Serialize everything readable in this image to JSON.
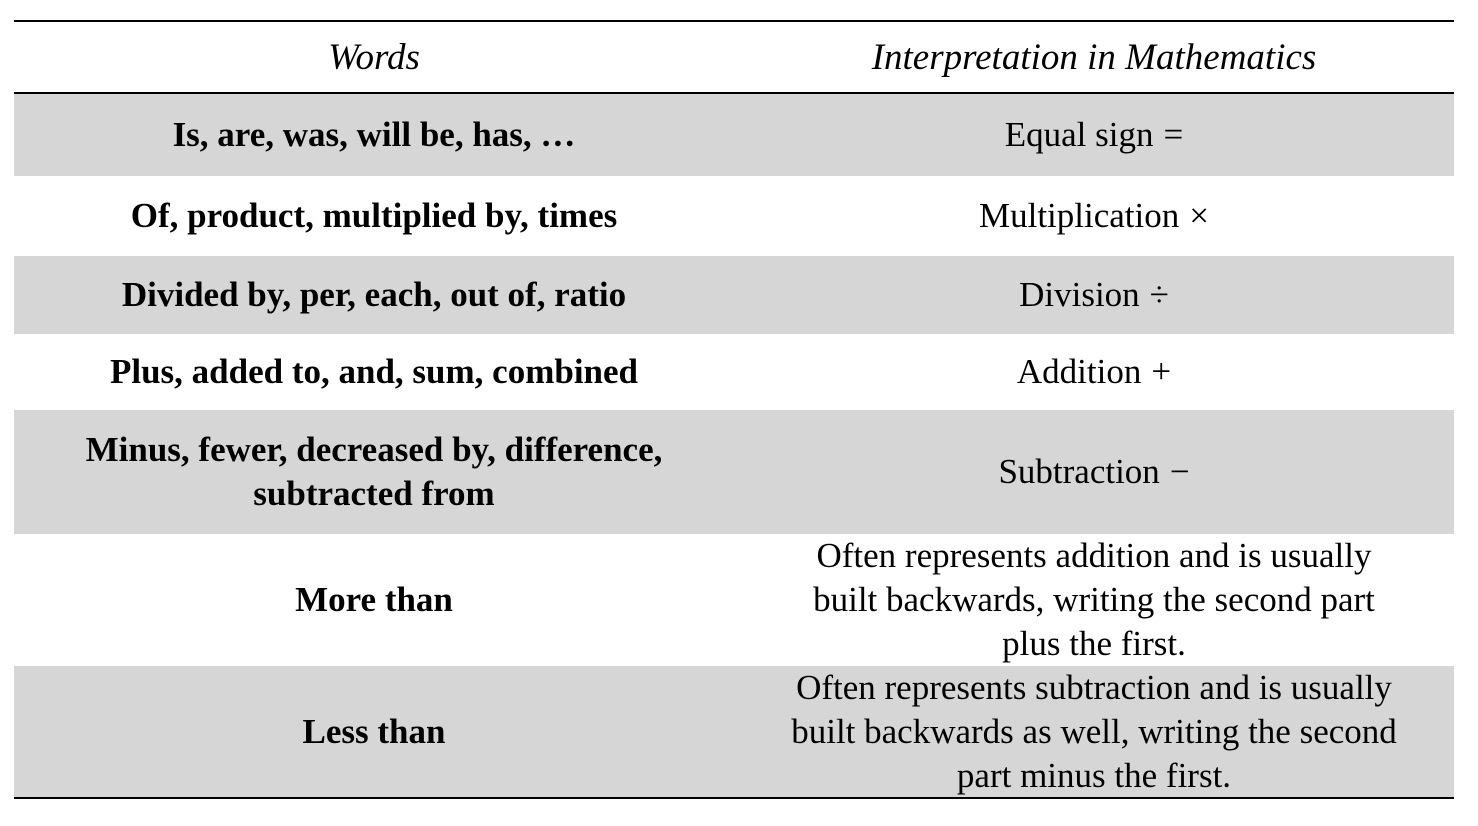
{
  "header": {
    "col_words": "Words",
    "col_interpretation": "Interpretation in Mathematics"
  },
  "rows": [
    {
      "words": "Is, are, was, will be, has, …",
      "interpretation": "Equal sign",
      "symbol": "=",
      "shaded": true
    },
    {
      "words": "Of, product, multiplied by, times",
      "interpretation": "Multiplication",
      "symbol": "×",
      "shaded": false
    },
    {
      "words": "Divided by, per, each, out of, ratio",
      "interpretation": "Division",
      "symbol": "÷",
      "shaded": true
    },
    {
      "words": "Plus, added to, and, sum, combined",
      "interpretation": "Addition",
      "symbol": "+",
      "shaded": false
    },
    {
      "words_line1": "Minus, fewer, decreased by, difference,",
      "words_line2": "subtracted from",
      "interpretation": "Subtraction",
      "symbol": "−",
      "shaded": true
    },
    {
      "words": "More than",
      "interpretation_line1": "Often represents addition and is usually",
      "interpretation_line2": "built backwards, writing the second part",
      "interpretation_line3": "plus the first.",
      "shaded": false
    },
    {
      "words": "Less than",
      "interpretation_line1": "Often represents subtraction and is usually",
      "interpretation_line2": "built backwards as well, writing the second",
      "interpretation_line3": "part minus the first.",
      "shaded": true
    }
  ],
  "colors": {
    "shade": "#d6d6d6",
    "rule": "#000000"
  }
}
